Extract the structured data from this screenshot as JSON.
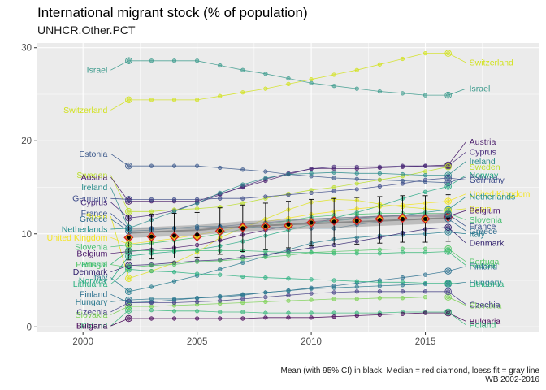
{
  "title": "International migrant stock (% of population)",
  "subtitle": "UNHCR.Other.PCT",
  "caption_line1": "Mean (with 95% CI) in black, Median = red diamond, loess fit = gray line",
  "caption_line2": "WB 2002-2016",
  "chart_data": {
    "type": "line",
    "x_ticks": [
      2000,
      2005,
      2010,
      2015
    ],
    "y_ticks": [
      0,
      10,
      20,
      30
    ],
    "xlim": [
      1998,
      2020
    ],
    "ylim": [
      -0.5,
      30.5
    ],
    "background": "#ebebeb",
    "grid": true,
    "legend": "none",
    "years": [
      2002,
      2003,
      2004,
      2005,
      2006,
      2007,
      2008,
      2009,
      2010,
      2011,
      2012,
      2013,
      2014,
      2015,
      2016
    ],
    "series": [
      {
        "name": "Switzerland",
        "color": "#d2e21b",
        "values": [
          24.4,
          24.4,
          24.4,
          24.4,
          24.8,
          25.2,
          25.6,
          26.1,
          26.6,
          27.1,
          27.6,
          28.2,
          28.8,
          29.4,
          29.4
        ]
      },
      {
        "name": "Israel",
        "color": "#3b9a8c",
        "values": [
          28.6,
          28.6,
          28.6,
          28.6,
          28.1,
          27.6,
          27.2,
          26.7,
          26.2,
          25.9,
          25.6,
          25.3,
          25.1,
          24.9,
          24.9
        ]
      },
      {
        "name": "Estonia",
        "color": "#3d5a8c",
        "values": [
          17.3,
          17.3,
          17.3,
          17.3,
          17.1,
          16.9,
          16.7,
          16.4,
          16.2,
          16.0,
          15.9,
          15.8,
          15.7,
          15.6,
          15.5
        ]
      },
      {
        "name": "Austria",
        "color": "#4a1d6b",
        "values": [
          13.5,
          13.5,
          13.5,
          13.5,
          14.3,
          15.0,
          15.7,
          16.4,
          17.0,
          17.0,
          17.0,
          17.1,
          17.2,
          17.3,
          17.4
        ]
      },
      {
        "name": "Cyprus",
        "color": "#472a7a",
        "values": [
          11.7,
          12.0,
          12.5,
          13.3,
          14.2,
          15.1,
          15.9,
          16.5,
          17.0,
          17.2,
          17.2,
          17.2,
          17.3,
          17.3,
          17.3
        ]
      },
      {
        "name": "Sweden",
        "color": "#bade28",
        "values": [
          12.4,
          12.4,
          12.6,
          12.7,
          12.9,
          13.3,
          13.8,
          14.3,
          14.7,
          15.0,
          15.4,
          15.8,
          16.2,
          16.7,
          17.2
        ]
      },
      {
        "name": "Ireland",
        "color": "#2c8d8c",
        "values": [
          10.6,
          11.5,
          12.4,
          13.3,
          14.4,
          15.3,
          16.0,
          16.4,
          16.5,
          16.6,
          16.5,
          16.5,
          16.4,
          16.3,
          16.3
        ]
      },
      {
        "name": "Germany",
        "color": "#3e4c8a",
        "values": [
          13.7,
          13.7,
          13.7,
          13.7,
          13.8,
          13.8,
          14.0,
          14.2,
          14.4,
          14.6,
          14.8,
          15.1,
          15.4,
          15.8,
          16.0
        ]
      },
      {
        "name": "Norway",
        "color": "#25a882",
        "values": [
          7.6,
          7.9,
          8.1,
          8.3,
          8.7,
          9.2,
          9.8,
          10.4,
          11.0,
          11.7,
          12.3,
          13.0,
          13.8,
          14.5,
          15.1
        ]
      },
      {
        "name": "United Kingdom",
        "color": "#f5e51f",
        "values": [
          8.9,
          9.2,
          9.5,
          9.9,
          10.3,
          10.8,
          11.3,
          11.7,
          12.1,
          12.4,
          12.7,
          12.9,
          13.1,
          13.3,
          13.5
        ]
      },
      {
        "name": "Netherlands",
        "color": "#218e8d",
        "values": [
          10.6,
          10.6,
          10.6,
          10.6,
          10.7,
          10.8,
          10.9,
          11.0,
          11.2,
          11.4,
          11.6,
          11.8,
          12.0,
          12.3,
          12.6
        ]
      },
      {
        "name": "Spain",
        "color": "#dfe318",
        "values": [
          5.2,
          6.0,
          6.9,
          8.0,
          9.6,
          10.6,
          11.6,
          12.6,
          13.4,
          13.7,
          13.6,
          13.2,
          12.9,
          12.7,
          12.5
        ]
      },
      {
        "name": "Belgium",
        "color": "#481467",
        "values": [
          8.1,
          8.3,
          8.5,
          8.8,
          9.3,
          9.9,
          10.4,
          10.9,
          11.3,
          11.5,
          11.7,
          11.9,
          11.9,
          11.9,
          11.9
        ]
      },
      {
        "name": "France",
        "color": "#3a538b",
        "values": [
          10.6,
          10.6,
          10.6,
          10.6,
          10.8,
          11.0,
          11.2,
          11.4,
          11.6,
          11.7,
          11.8,
          11.9,
          12.0,
          12.0,
          12.1
        ]
      },
      {
        "name": "Slovenia",
        "color": "#45bf70",
        "values": [
          8.8,
          9.0,
          9.3,
          9.6,
          10.0,
          10.5,
          11.0,
          11.4,
          11.8,
          12.0,
          12.1,
          12.2,
          12.2,
          12.2,
          12.2
        ]
      },
      {
        "name": "Greece",
        "color": "#2f6b8e",
        "values": [
          10.3,
          10.4,
          10.6,
          10.8,
          10.8,
          10.7,
          10.7,
          10.7,
          10.6,
          10.6,
          11.0,
          11.3,
          11.6,
          11.6,
          11.6
        ]
      },
      {
        "name": "Italy",
        "color": "#287c8e",
        "values": [
          3.8,
          4.3,
          4.9,
          5.5,
          6.2,
          6.9,
          7.6,
          8.3,
          9.0,
          9.4,
          9.6,
          9.8,
          9.9,
          10.0,
          10.2
        ]
      },
      {
        "name": "Denmark",
        "color": "#2d1d6b",
        "values": [
          6.6,
          6.7,
          6.9,
          7.1,
          7.2,
          7.5,
          7.8,
          8.1,
          8.5,
          8.8,
          9.2,
          9.6,
          10.1,
          10.5,
          10.7
        ]
      },
      {
        "name": "Portugal",
        "color": "#56c667",
        "values": [
          6.4,
          6.6,
          6.7,
          7.0,
          7.1,
          7.3,
          7.5,
          7.7,
          8.0,
          8.1,
          8.2,
          8.3,
          8.4,
          8.4,
          8.4
        ]
      },
      {
        "name": "Russia",
        "color": "#38b977",
        "values": [
          8.2,
          8.2,
          8.2,
          8.2,
          8.2,
          8.2,
          8.1,
          8.0,
          8.0,
          7.9,
          7.9,
          7.9,
          8.0,
          8.0,
          8.1
        ]
      },
      {
        "name": "Finland",
        "color": "#2a6f8e",
        "values": [
          2.6,
          2.7,
          2.9,
          3.1,
          3.2,
          3.4,
          3.7,
          3.9,
          4.2,
          4.4,
          4.7,
          5.0,
          5.3,
          5.6,
          6.0
        ]
      },
      {
        "name": "Lithuania",
        "color": "#2ab07f",
        "values": [
          6.2,
          6.0,
          5.9,
          5.7,
          5.6,
          5.4,
          5.3,
          5.2,
          5.1,
          5.0,
          4.9,
          4.8,
          4.8,
          4.7,
          4.7
        ]
      },
      {
        "name": "Hungary",
        "color": "#2a788e",
        "values": [
          2.9,
          3.0,
          3.0,
          3.1,
          3.3,
          3.5,
          3.7,
          3.9,
          4.1,
          4.2,
          4.3,
          4.4,
          4.5,
          4.6,
          4.6
        ]
      },
      {
        "name": "Slovakia",
        "color": "#7ad151",
        "values": [
          2.2,
          2.2,
          2.3,
          2.4,
          2.5,
          2.6,
          2.7,
          2.8,
          2.9,
          3.0,
          3.0,
          3.1,
          3.1,
          3.2,
          3.2
        ]
      },
      {
        "name": "Czechia",
        "color": "#433e85",
        "values": [
          2.6,
          2.6,
          2.6,
          2.7,
          2.8,
          3.0,
          3.2,
          3.4,
          3.6,
          3.7,
          3.8,
          3.8,
          3.8,
          3.8,
          3.8
        ]
      },
      {
        "name": "Poland",
        "color": "#35b779",
        "values": [
          1.8,
          1.8,
          1.7,
          1.7,
          1.6,
          1.6,
          1.5,
          1.5,
          1.5,
          1.5,
          1.5,
          1.5,
          1.6,
          1.6,
          1.6
        ]
      },
      {
        "name": "Bulgaria",
        "color": "#440154",
        "values": [
          0.9,
          0.9,
          0.9,
          0.9,
          0.9,
          0.9,
          1.0,
          1.0,
          1.0,
          1.1,
          1.2,
          1.3,
          1.4,
          1.5,
          1.5
        ]
      }
    ],
    "stats": {
      "mean": [
        9.6,
        9.7,
        9.8,
        9.9,
        10.3,
        10.6,
        10.8,
        11.0,
        11.2,
        11.3,
        11.4,
        11.5,
        11.6,
        11.6,
        11.7
      ],
      "ci_low": [
        7.2,
        7.3,
        7.4,
        7.5,
        7.8,
        8.1,
        8.3,
        8.5,
        8.7,
        8.8,
        8.9,
        9.0,
        9.1,
        9.1,
        9.2
      ],
      "ci_high": [
        12.0,
        12.1,
        12.2,
        12.3,
        12.8,
        13.1,
        13.3,
        13.5,
        13.7,
        13.8,
        13.9,
        14.0,
        14.1,
        14.1,
        14.2
      ],
      "median": [
        9.6,
        9.7,
        9.7,
        9.7,
        10.3,
        10.7,
        10.8,
        10.9,
        11.2,
        11.4,
        11.4,
        11.6,
        11.7,
        11.6,
        11.8
      ],
      "loess": [
        10.1,
        10.2,
        10.3,
        10.4,
        10.6,
        10.8,
        10.9,
        11.0,
        11.1,
        11.2,
        11.3,
        11.4,
        11.5,
        11.6,
        11.7
      ]
    },
    "left_labels": [
      {
        "name": "Israel",
        "y": 27.6,
        "color": "#3b9a8c"
      },
      {
        "name": "Switzerland",
        "y": 23.3,
        "color": "#d2e21b"
      },
      {
        "name": "Estonia",
        "y": 18.6,
        "color": "#3d5a8c"
      },
      {
        "name": "Sweden",
        "y": 16.3,
        "color": "#bade28"
      },
      {
        "name": "Austria",
        "y": 16.1,
        "color": "#4a1d6b"
      },
      {
        "name": "Ireland",
        "y": 15.0,
        "color": "#2c8d8c"
      },
      {
        "name": "Germany",
        "y": 13.8,
        "color": "#3e4c8a"
      },
      {
        "name": "Cyprus",
        "y": 13.4,
        "color": "#472a7a"
      },
      {
        "name": "France",
        "y": 12.2,
        "color": "#3a538b"
      },
      {
        "name": "Spain",
        "y": 11.9,
        "color": "#dfe318"
      },
      {
        "name": "Greece",
        "y": 11.6,
        "color": "#2f6b8e"
      },
      {
        "name": "Netherlands",
        "y": 10.5,
        "color": "#218e8d"
      },
      {
        "name": "United Kingdom",
        "y": 9.6,
        "color": "#f5e51f"
      },
      {
        "name": "Slovenia",
        "y": 8.6,
        "color": "#45bf70"
      },
      {
        "name": "Belgium",
        "y": 7.9,
        "color": "#481467"
      },
      {
        "name": "Portugal",
        "y": 6.7,
        "color": "#56c667"
      },
      {
        "name": "Russia",
        "y": 6.7,
        "color": "#38b977"
      },
      {
        "name": "Denmark",
        "y": 5.9,
        "color": "#2d1d6b"
      },
      {
        "name": "Italy",
        "y": 5.3,
        "color": "#287c8e"
      },
      {
        "name": "Norway",
        "y": 5.0,
        "color": "#25a882"
      },
      {
        "name": "Lithuania",
        "y": 4.6,
        "color": "#2ab07f"
      },
      {
        "name": "Finland",
        "y": 3.5,
        "color": "#2a6f8e"
      },
      {
        "name": "Hungary",
        "y": 2.7,
        "color": "#2a788e"
      },
      {
        "name": "Slovakia",
        "y": 1.3,
        "color": "#7ad151"
      },
      {
        "name": "Czechia",
        "y": 1.6,
        "color": "#433e85"
      },
      {
        "name": "Poland",
        "y": 0.1,
        "color": "#35b779"
      },
      {
        "name": "Bulgaria",
        "y": 0.1,
        "color": "#440154"
      }
    ],
    "right_labels": [
      {
        "name": "Switzerland",
        "y": 28.4,
        "color": "#d2e21b"
      },
      {
        "name": "Israel",
        "y": 25.6,
        "color": "#3b9a8c"
      },
      {
        "name": "Austria",
        "y": 19.9,
        "color": "#4a1d6b"
      },
      {
        "name": "Cyprus",
        "y": 18.8,
        "color": "#472a7a"
      },
      {
        "name": "Ireland",
        "y": 17.8,
        "color": "#2c8d8c"
      },
      {
        "name": "Sweden",
        "y": 17.2,
        "color": "#bade28"
      },
      {
        "name": "Norway",
        "y": 16.3,
        "color": "#25a882"
      },
      {
        "name": "Estonia",
        "y": 16.1,
        "color": "#3d5a8c"
      },
      {
        "name": "Germany",
        "y": 15.8,
        "color": "#3e4c8a"
      },
      {
        "name": "United Kingdom",
        "y": 14.3,
        "color": "#f5e51f"
      },
      {
        "name": "Netherlands",
        "y": 14.0,
        "color": "#218e8d"
      },
      {
        "name": "Spain",
        "y": 12.7,
        "color": "#dfe318"
      },
      {
        "name": "Belgium",
        "y": 12.5,
        "color": "#481467"
      },
      {
        "name": "Slovenia",
        "y": 11.5,
        "color": "#45bf70"
      },
      {
        "name": "France",
        "y": 10.8,
        "color": "#3a538b"
      },
      {
        "name": "Greece",
        "y": 10.3,
        "color": "#2f6b8e"
      },
      {
        "name": "Italy",
        "y": 10.0,
        "color": "#287c8e"
      },
      {
        "name": "Denmark",
        "y": 9.0,
        "color": "#2d1d6b"
      },
      {
        "name": "Portugal",
        "y": 7.0,
        "color": "#56c667"
      },
      {
        "name": "Russia",
        "y": 6.6,
        "color": "#38b977"
      },
      {
        "name": "Finland",
        "y": 6.5,
        "color": "#2a6f8e"
      },
      {
        "name": "Hungary",
        "y": 4.8,
        "color": "#2a788e"
      },
      {
        "name": "Lithuania",
        "y": 4.6,
        "color": "#2ab07f"
      },
      {
        "name": "Slovakia",
        "y": 2.3,
        "color": "#7ad151"
      },
      {
        "name": "Czechia",
        "y": 2.4,
        "color": "#433e85"
      },
      {
        "name": "Bulgaria",
        "y": 0.6,
        "color": "#440154"
      },
      {
        "name": "Poland",
        "y": 0.2,
        "color": "#35b779"
      }
    ]
  }
}
